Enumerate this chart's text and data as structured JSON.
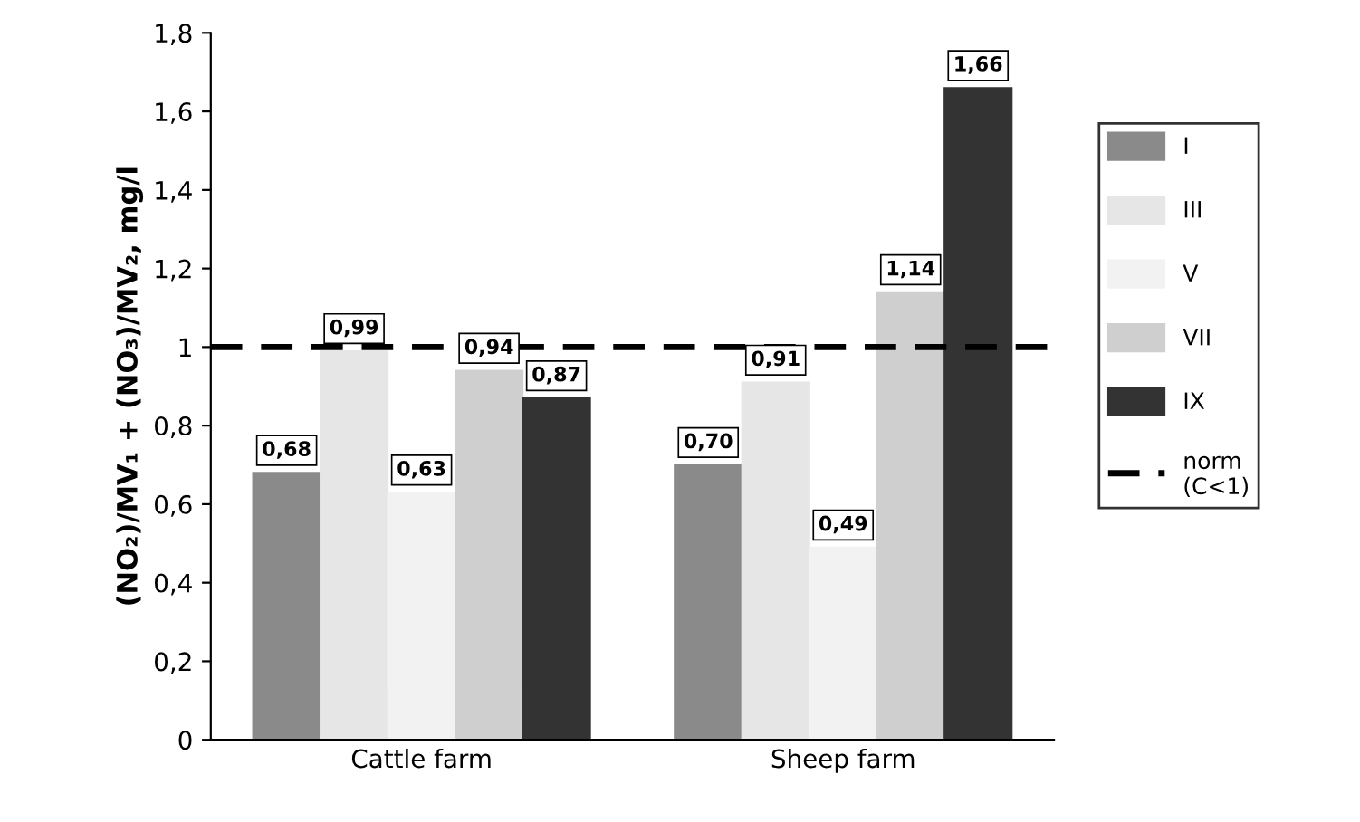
{
  "chart_data": {
    "type": "bar",
    "ylabel": "(NO₂)/MV₁ + (NO₃)/MV₂, mg/l",
    "categories": [
      "Cattle farm",
      "Sheep farm"
    ],
    "series": [
      {
        "name": "I",
        "color": "#8a8a8a",
        "values": [
          0.68,
          0.7
        ],
        "value_labels": [
          "0,68",
          "0,70"
        ]
      },
      {
        "name": "III",
        "color": "#e6e6e6",
        "values": [
          0.99,
          0.91
        ],
        "value_labels": [
          "0,99",
          "0,91"
        ]
      },
      {
        "name": "V",
        "color": "#f2f2f2",
        "values": [
          0.63,
          0.49
        ],
        "value_labels": [
          "0,63",
          "0,49"
        ]
      },
      {
        "name": "VII",
        "color": "#cfcfcf",
        "values": [
          0.94,
          1.14
        ],
        "value_labels": [
          "0,94",
          "1,14"
        ]
      },
      {
        "name": "IX",
        "color": "#333333",
        "values": [
          0.87,
          1.66
        ],
        "value_labels": [
          "0,87",
          "1,66"
        ]
      }
    ],
    "ylim": [
      0,
      1.8
    ],
    "yticks": [
      0,
      {
        "value": 0.2,
        "label": "0,2"
      },
      {
        "value": 0.4,
        "label": "0,4"
      },
      {
        "value": 0.6,
        "label": "0,6"
      },
      {
        "value": 0.8,
        "label": "0,8"
      },
      1,
      {
        "value": 1.2,
        "label": "1,2"
      },
      {
        "value": 1.4,
        "label": "1,4"
      },
      {
        "value": 1.6,
        "label": "1,6"
      },
      {
        "value": 1.8,
        "label": "1,8"
      }
    ],
    "ref_lines": [
      {
        "axis": "y",
        "value": 1,
        "label": "norm\n(C<1)",
        "color": "#000000",
        "line_style": "dashed"
      }
    ],
    "grid": false,
    "legend": "right"
  }
}
